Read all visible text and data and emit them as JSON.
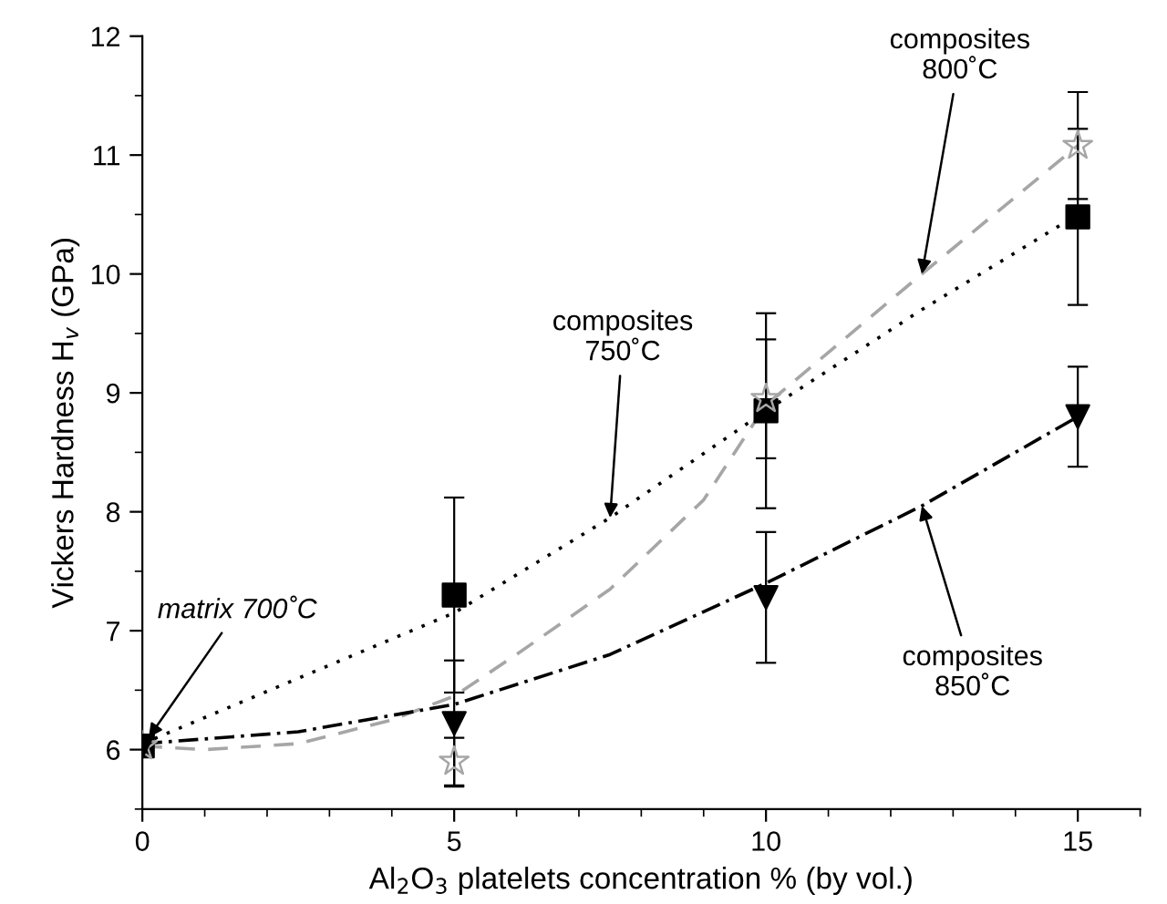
{
  "chart_data": {
    "type": "scatter",
    "xlabel": "Al$_{2}$O$_{3}$ platelets concentration % (by vol.)",
    "ylabel": "Vickers Hardness H$_{v}$ (GPa)",
    "xlim": [
      0,
      16
    ],
    "xticks": [
      0,
      5,
      10,
      15
    ],
    "ylim": [
      5.5,
      12
    ],
    "yticks": [
      6,
      7,
      8,
      9,
      10,
      11,
      12
    ],
    "grid": false,
    "legend": false,
    "series": [
      {
        "type": "line",
        "color": "#000000",
        "line_style": "dotted",
        "marker": "none",
        "x": [
          0,
          2.5,
          5,
          7.5,
          10,
          12.5,
          15
        ],
        "values": [
          6.05,
          6.6,
          7.15,
          7.95,
          8.85,
          9.7,
          10.5
        ]
      },
      {
        "type": "line",
        "color": "#a6a6a6",
        "line_style": "dashed",
        "marker": "none",
        "x": [
          0,
          1,
          2.5,
          4,
          5,
          6,
          7.5,
          9,
          10,
          12.5,
          15
        ],
        "values": [
          6.03,
          6.0,
          6.05,
          6.25,
          6.45,
          6.8,
          7.35,
          8.1,
          8.9,
          10.0,
          11.08
        ]
      },
      {
        "type": "line",
        "color": "#000000",
        "line_style": "dashdot",
        "marker": "none",
        "x": [
          0,
          2.5,
          5,
          7.5,
          10,
          12.5,
          15
        ],
        "values": [
          6.05,
          6.15,
          6.38,
          6.8,
          7.4,
          8.05,
          8.8
        ]
      },
      {
        "color": "#000000",
        "marker": "square",
        "x": [
          0,
          5,
          10,
          15
        ],
        "values": [
          6.03,
          7.3,
          8.85,
          10.48
        ],
        "errors": [
          null,
          0.82,
          0.82,
          0.74
        ]
      },
      {
        "color": "#a6a6a6",
        "marker": "star",
        "x": [
          0,
          5,
          10,
          15
        ],
        "values": [
          6.03,
          5.9,
          8.95,
          11.08
        ],
        "errors": [
          null,
          0.2,
          0.5,
          0.45
        ]
      },
      {
        "color": "#000000",
        "marker": "triangle",
        "x": [
          0,
          5,
          10,
          15
        ],
        "values": [
          6.03,
          6.22,
          7.28,
          8.8
        ],
        "errors": [
          null,
          0.53,
          0.55,
          0.42
        ]
      }
    ],
    "annotations": [
      {
        "text": "matrix 700˚C",
        "x": 0.1,
        "y": 6.1
      },
      {
        "text": "composites\n750˚C",
        "x": 7.5,
        "y": 7.95
      },
      {
        "text": "composites\n800˚C",
        "x": 12.5,
        "y": 10.0
      },
      {
        "text": "composites\n850˚C",
        "x": 12.5,
        "y": 8.05
      }
    ]
  }
}
